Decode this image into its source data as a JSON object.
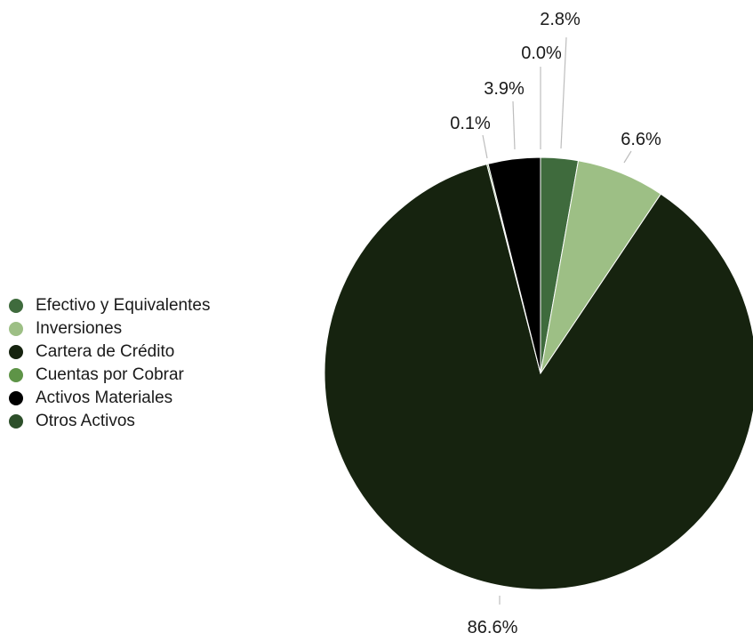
{
  "chart_data": {
    "type": "pie",
    "title": "",
    "legend_position": "left",
    "slices": [
      {
        "label": "Efectivo y Equivalentes",
        "value": 2.8,
        "value_label": "2.8%",
        "color": "#3f6b3d"
      },
      {
        "label": "Inversiones",
        "value": 6.6,
        "value_label": "6.6%",
        "color": "#9dbf85"
      },
      {
        "label": "Cartera de Crédito",
        "value": 86.6,
        "value_label": "86.6%",
        "color": "#16230f"
      },
      {
        "label": "Cuentas por Cobrar",
        "value": 0.1,
        "value_label": "0.1%",
        "color": "#5e9447"
      },
      {
        "label": "Activos Materiales",
        "value": 3.9,
        "value_label": "3.9%",
        "color": "#000000"
      },
      {
        "label": "Otros Activos",
        "value": 0.0,
        "value_label": "0.0%",
        "color": "#2d4f2a"
      }
    ]
  }
}
